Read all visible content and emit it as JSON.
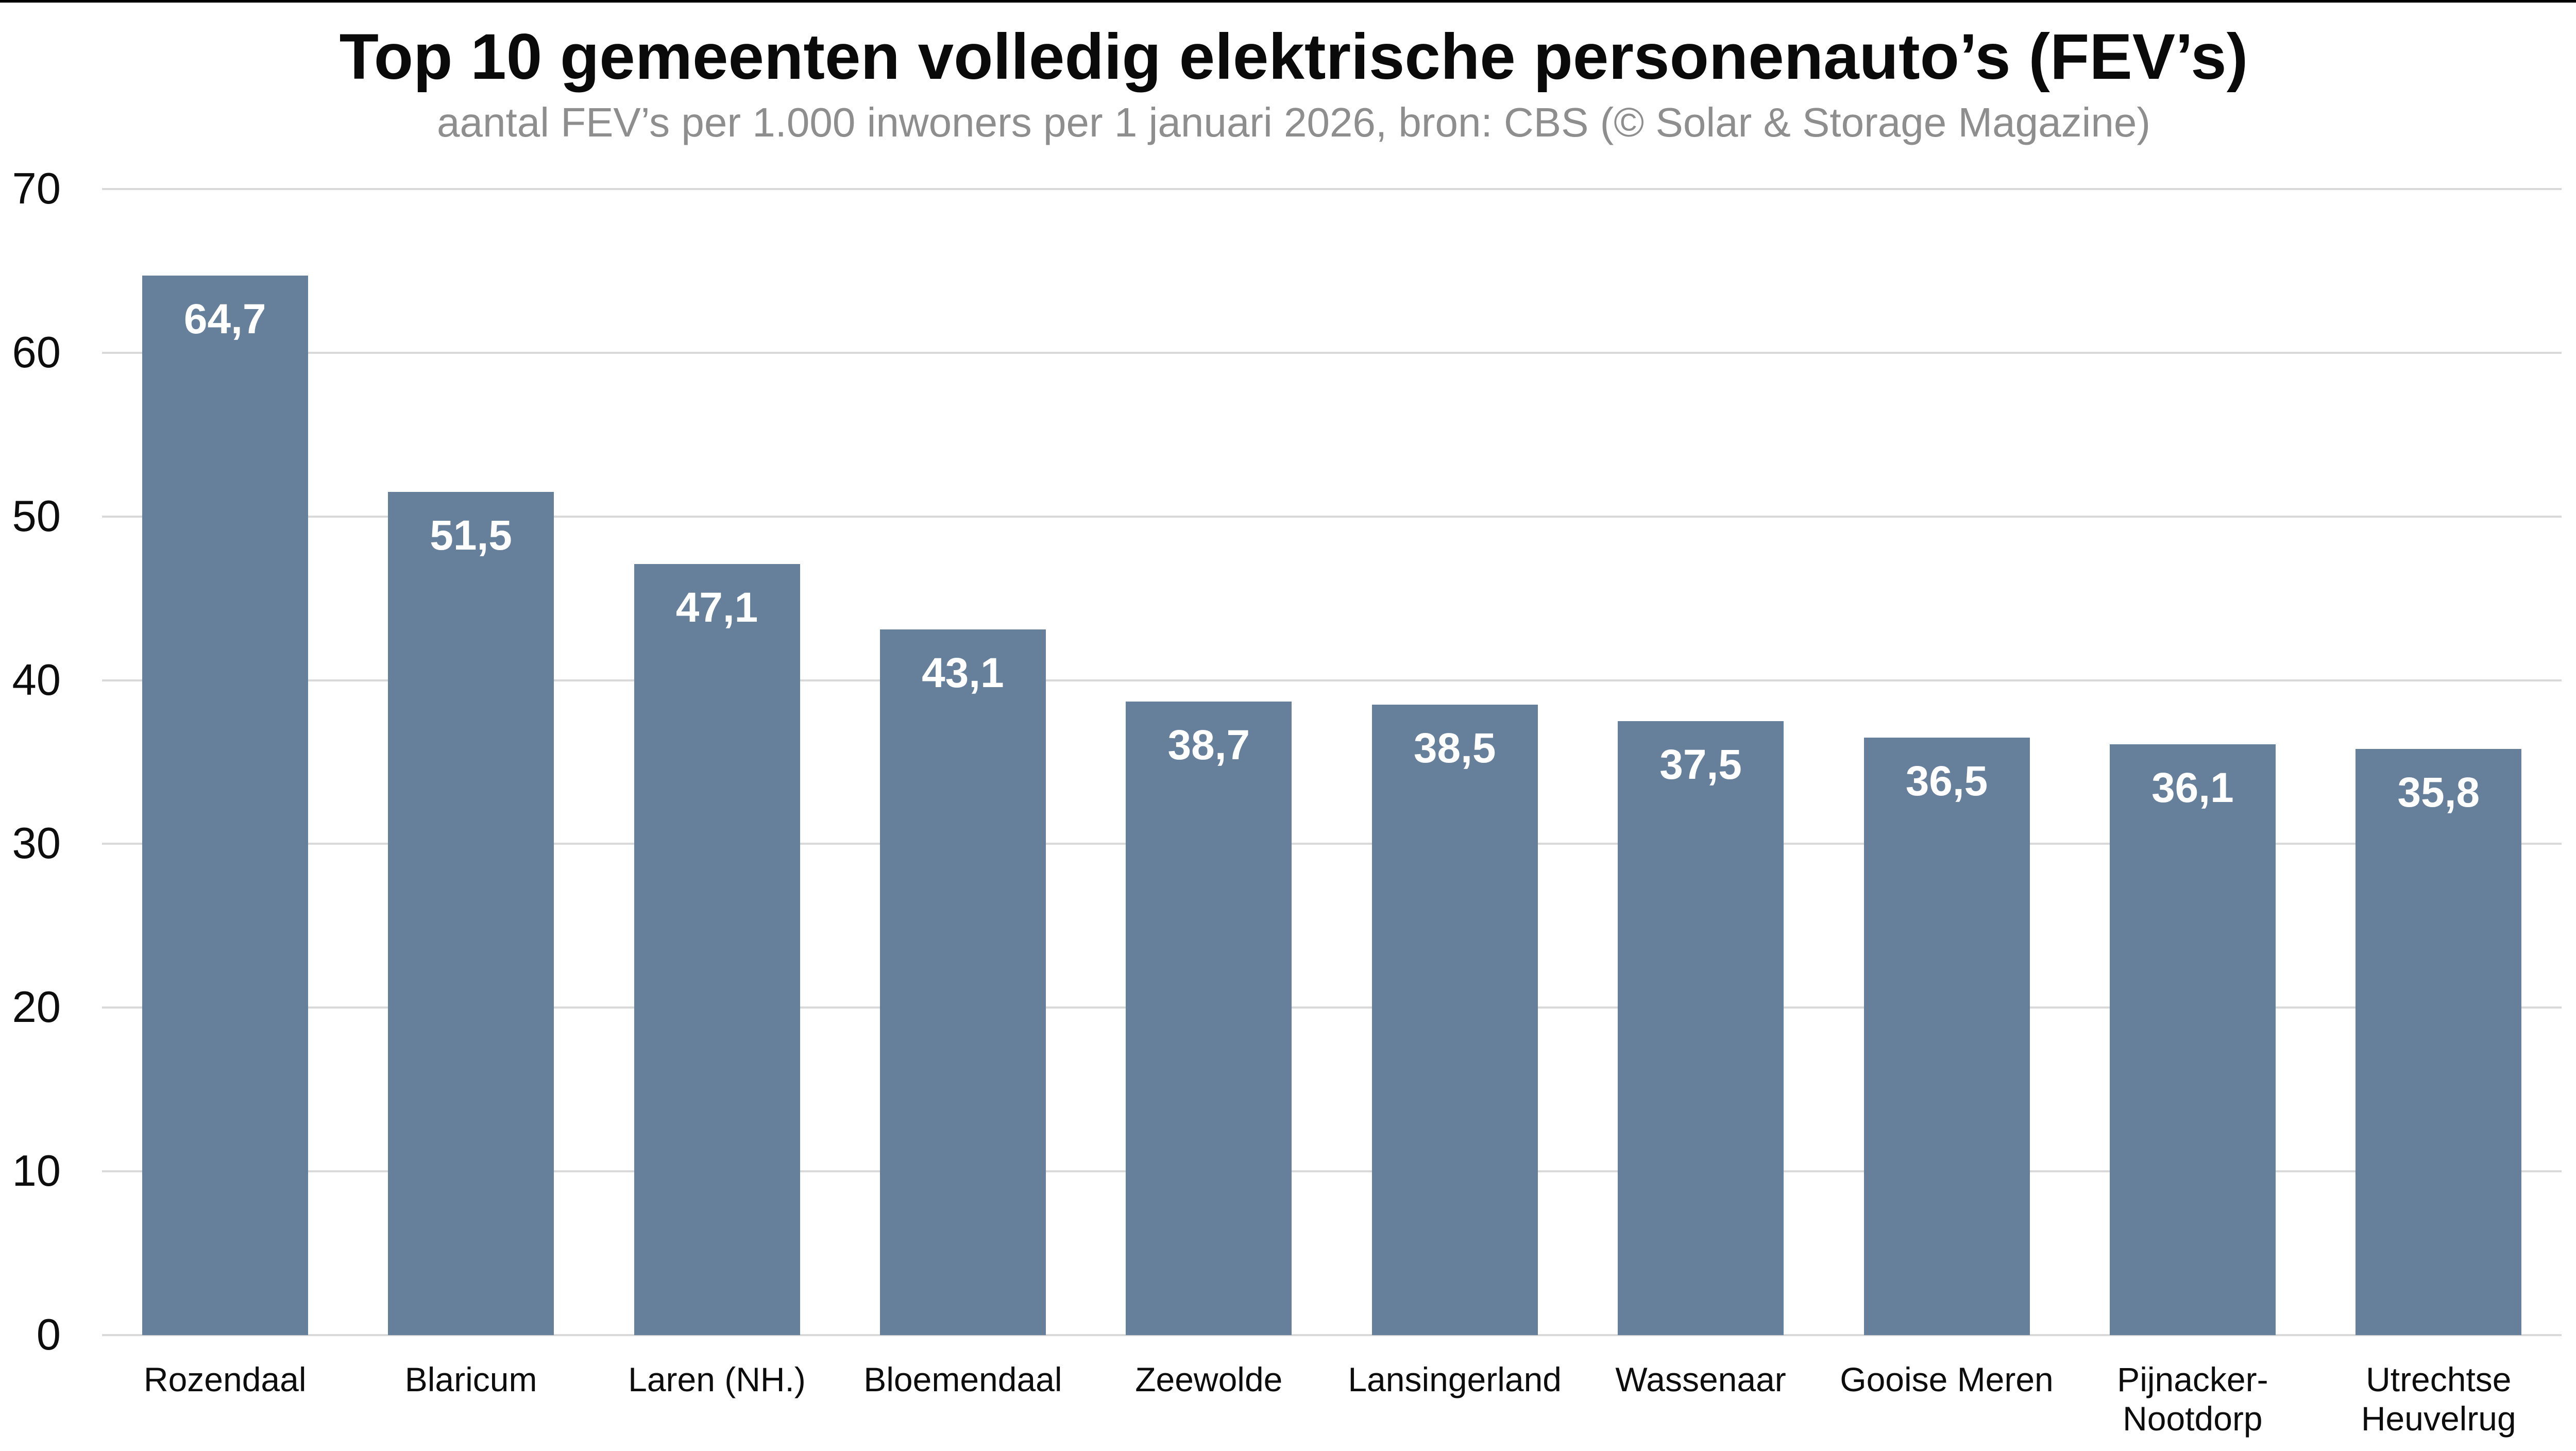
{
  "page": {
    "title": "Top 10 gemeenten volledig elektrische personenauto’s (FEV’s)",
    "subtitle": "aantal FEV’s per 1.000 inwoners per 1 januari 2026, bron: CBS (© Solar & Storage Magazine)"
  },
  "chart_data": {
    "type": "bar",
    "title": "Top 10 gemeenten volledig elektrische personenauto’s (FEV’s)",
    "subtitle": "aantal FEV’s per 1.000 inwoners per 1 januari 2026, bron: CBS (© Solar & Storage Magazine)",
    "categories": [
      "Rozendaal",
      "Blaricum",
      "Laren (NH.)",
      "Bloemendaal",
      "Zeewolde",
      "Lansingerland",
      "Wassenaar",
      "Gooise Meren",
      "Pijnacker-\nNootdorp",
      "Utrechtse\nHeuvelrug"
    ],
    "values": [
      64.7,
      51.5,
      47.1,
      43.1,
      38.7,
      38.5,
      37.5,
      36.5,
      36.1,
      35.8
    ],
    "value_labels": [
      "64,7",
      "51,5",
      "47,1",
      "43,1",
      "38,7",
      "38,5",
      "37,5",
      "36,5",
      "36,1",
      "35,8"
    ],
    "xlabel": "",
    "ylabel": "",
    "ylim": [
      0,
      70
    ],
    "yticks": [
      0,
      10,
      20,
      30,
      40,
      50,
      60,
      70
    ],
    "ytick_labels": [
      "0",
      "10",
      "20",
      "30",
      "40",
      "50",
      "60",
      "70"
    ],
    "grid": true,
    "legend": "none",
    "colors": {
      "bar": "#66809b",
      "value_label": "#ffffff",
      "gridline": "#d9d9d9",
      "axis_text": "#0d0d0d",
      "title": "#0a0a0a",
      "subtitle": "#8e8e8e",
      "top_border": "#000000",
      "background": "#ffffff"
    }
  }
}
